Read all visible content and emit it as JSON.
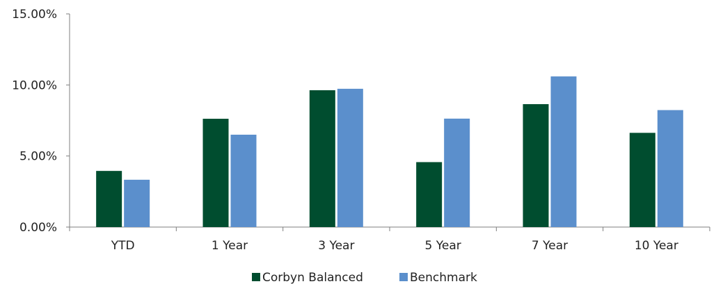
{
  "chart_data": {
    "type": "bar",
    "categories": [
      "YTD",
      "1 Year",
      "3 Year",
      "5 Year",
      "7 Year",
      "10 Year"
    ],
    "series": [
      {
        "name": "Corbyn Balanced",
        "color": "#004d2f",
        "values": [
          3.95,
          7.62,
          9.63,
          4.57,
          8.65,
          6.63
        ]
      },
      {
        "name": "Benchmark",
        "color": "#5b8fcc",
        "values": [
          3.33,
          6.5,
          9.73,
          7.63,
          10.6,
          8.23
        ]
      }
    ],
    "y_ticks": [
      "15.00%",
      "10.00%",
      "5.00%",
      "0.00%"
    ],
    "y_tick_values": [
      15,
      10,
      5,
      0
    ],
    "ylim": [
      0,
      15
    ],
    "title": "",
    "xlabel": "",
    "ylabel": "",
    "grid": false,
    "legend_position": "bottom-center"
  }
}
